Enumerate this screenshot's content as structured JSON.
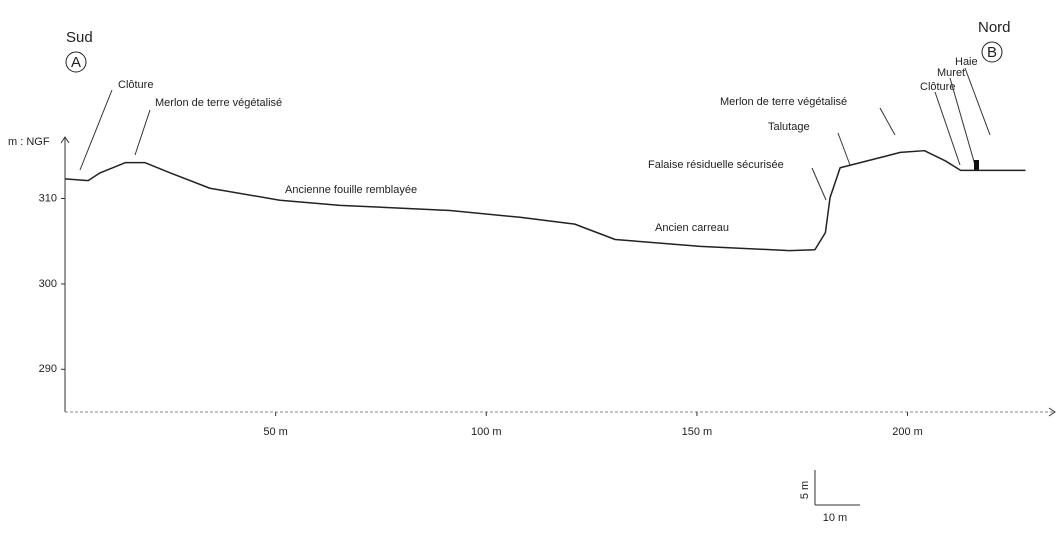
{
  "chart_data": {
    "type": "line",
    "y_label": "m : NGF",
    "x": [
      0,
      5.5,
      8.3,
      14.3,
      19,
      25,
      34.4,
      51,
      65.3,
      91.4,
      108,
      121,
      130.6,
      150.8,
      172,
      178,
      180.5,
      181.6,
      184,
      188.8,
      198.3,
      204,
      209,
      212.6,
      228
    ],
    "values": [
      312.3,
      312.1,
      313,
      314.2,
      314.2,
      313,
      311.2,
      309.8,
      309.2,
      308.6,
      307.8,
      307,
      305.2,
      304.4,
      303.9,
      304,
      306,
      310.1,
      313.6,
      314.2,
      315.4,
      315.6,
      314.4,
      313.3,
      313.3
    ],
    "color": "#222222",
    "xlim": [
      0,
      235
    ],
    "ylim": [
      285,
      316.5
    ],
    "xticks": [
      {
        "value": 50,
        "label": "50 m"
      },
      {
        "value": 100,
        "label": "100 m"
      },
      {
        "value": 150,
        "label": "150 m"
      },
      {
        "value": 200,
        "label": "200 m"
      }
    ],
    "yticks": [
      290,
      300,
      310
    ],
    "south": "Sud",
    "south_marker": "A",
    "north": "Nord",
    "north_marker": "B",
    "annotations": [
      "Clôture",
      "Merlon de terre végétalisé",
      "Ancienne fouille remblayée",
      "Ancien carreau",
      "Falaise résiduelle sécurisée",
      "Talutage",
      "Merlon de terre végétalisé",
      "Clôture",
      "Muret",
      "Haie"
    ],
    "scale_vertical": "5 m",
    "scale_horizontal": "10 m"
  }
}
